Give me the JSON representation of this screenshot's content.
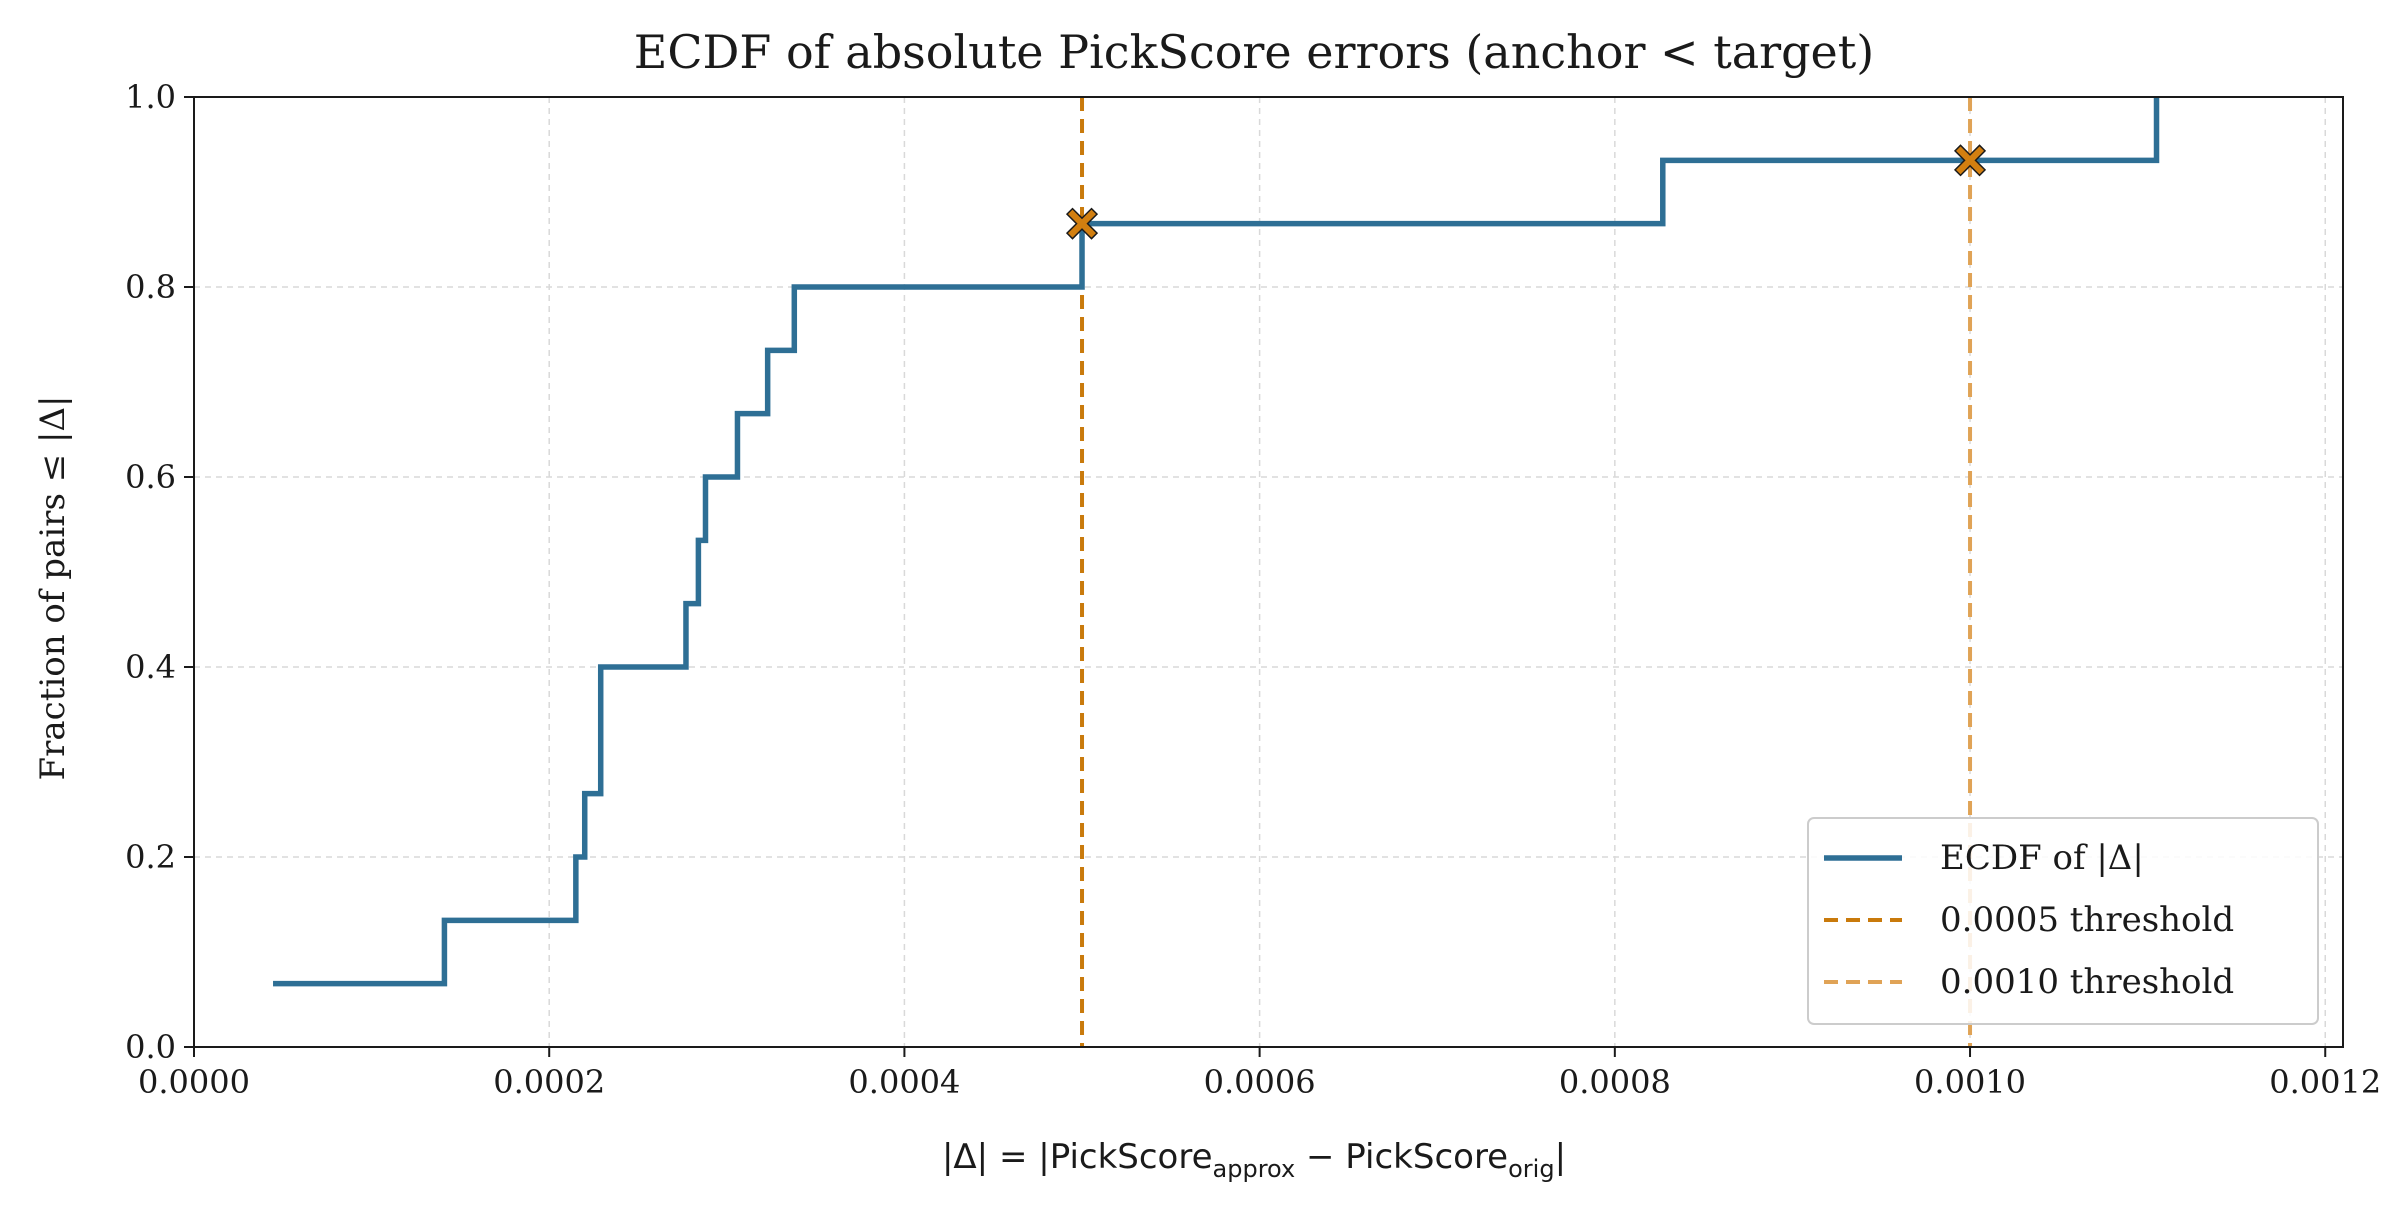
{
  "chart_data": {
    "type": "line",
    "subtype": "step",
    "title": "ECDF of absolute PickScore errors (anchor < target)",
    "xlabel": {
      "prefix": "|Δ| = |PickScore",
      "sub1": "approx",
      "mid": " − PickScore",
      "sub2": "orig",
      "suffix": "|"
    },
    "ylabel": "Fraction of pairs  ≤ |Δ|",
    "xlim": [
      0,
      0.00121
    ],
    "ylim": [
      0,
      1.0
    ],
    "xticks": [
      0,
      0.0002,
      0.0004,
      0.0006,
      0.0008,
      0.001,
      0.0012
    ],
    "xtick_labels": [
      "0.0000",
      "0.0002",
      "0.0004",
      "0.0006",
      "0.0008",
      "0.0010",
      "0.0012"
    ],
    "yticks": [
      0,
      0.2,
      0.4,
      0.6,
      0.8,
      1.0
    ],
    "ytick_labels": [
      "0.0",
      "0.2",
      "0.4",
      "0.6",
      "0.8",
      "1.0"
    ],
    "grid": true,
    "legend_position": "lower-right",
    "series": [
      {
        "name": "ECDF of |Δ|",
        "color": "#2e6f95",
        "x": [
          4.45e-05,
          0.000141,
          0.000215,
          0.00022,
          0.000229,
          0.000277,
          0.000284,
          0.000288,
          0.000306,
          0.000323,
          0.000338,
          0.0005,
          0.000827,
          0.001,
          0.001105
        ],
        "y": [
          0.0667,
          0.1333,
          0.2,
          0.2667,
          0.4,
          0.4667,
          0.5333,
          0.6,
          0.6667,
          0.7333,
          0.8,
          0.8667,
          0.9333,
          0.9333,
          1.0
        ]
      }
    ],
    "thresholds": [
      {
        "name": "0.0005 threshold",
        "x": 0.0005,
        "color": "#c97a0c",
        "marker_y": 0.8667
      },
      {
        "name": "0.0010 threshold",
        "x": 0.001,
        "color": "#e0a356",
        "marker_y": 0.9333
      }
    ],
    "marker_color": "#d27f10"
  }
}
